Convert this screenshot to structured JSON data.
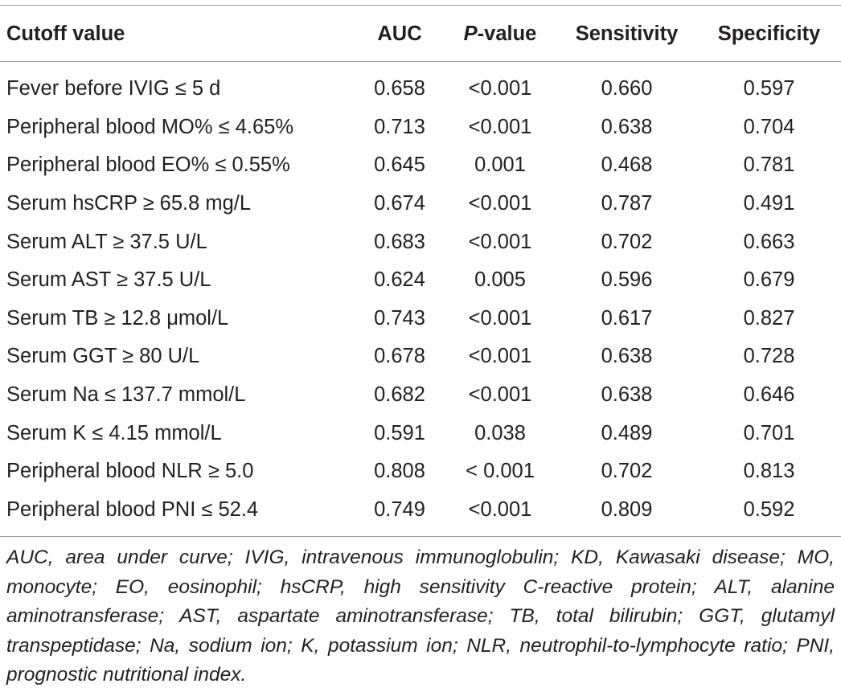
{
  "table": {
    "headers": {
      "cutoff": "Cutoff value",
      "auc": "AUC",
      "p_value_italic": "P",
      "p_value_rest": "-value",
      "sensitivity": "Sensitivity",
      "specificity": "Specificity"
    },
    "rows": [
      {
        "cutoff": "Fever before IVIG ≤ 5 d",
        "auc": "0.658",
        "p": "<0.001",
        "sensitivity": "0.660",
        "specificity": "0.597"
      },
      {
        "cutoff": "Peripheral blood MO% ≤ 4.65%",
        "auc": "0.713",
        "p": "<0.001",
        "sensitivity": "0.638",
        "specificity": "0.704"
      },
      {
        "cutoff": "Peripheral blood EO% ≤ 0.55%",
        "auc": "0.645",
        "p": "0.001",
        "sensitivity": "0.468",
        "specificity": "0.781"
      },
      {
        "cutoff": "Serum hsCRP ≥ 65.8 mg/L",
        "auc": "0.674",
        "p": "<0.001",
        "sensitivity": "0.787",
        "specificity": "0.491"
      },
      {
        "cutoff": "Serum ALT ≥ 37.5 U/L",
        "auc": "0.683",
        "p": "<0.001",
        "sensitivity": "0.702",
        "specificity": "0.663"
      },
      {
        "cutoff": "Serum AST ≥ 37.5 U/L",
        "auc": "0.624",
        "p": "0.005",
        "sensitivity": "0.596",
        "specificity": "0.679"
      },
      {
        "cutoff": "Serum TB ≥ 12.8 μmol/L",
        "auc": "0.743",
        "p": "<0.001",
        "sensitivity": "0.617",
        "specificity": "0.827"
      },
      {
        "cutoff": "Serum GGT ≥ 80 U/L",
        "auc": "0.678",
        "p": "<0.001",
        "sensitivity": "0.638",
        "specificity": "0.728"
      },
      {
        "cutoff": "Serum Na ≤ 137.7 mmol/L",
        "auc": "0.682",
        "p": "<0.001",
        "sensitivity": "0.638",
        "specificity": "0.646"
      },
      {
        "cutoff": "Serum K ≤ 4.15 mmol/L",
        "auc": "0.591",
        "p": "0.038",
        "sensitivity": "0.489",
        "specificity": "0.701"
      },
      {
        "cutoff": "Peripheral blood NLR ≥ 5.0",
        "auc": "0.808",
        "p": "< 0.001",
        "sensitivity": "0.702",
        "specificity": "0.813"
      },
      {
        "cutoff": "Peripheral blood PNI ≤ 52.4",
        "auc": "0.749",
        "p": "<0.001",
        "sensitivity": "0.809",
        "specificity": "0.592"
      }
    ]
  },
  "footnote": "AUC, area under curve; IVIG, intravenous immunoglobulin; KD, Kawasaki disease; MO, monocyte; EO, eosinophil; hsCRP, high sensitivity C-reactive protein; ALT, alanine aminotransferase; AST, aspartate aminotransferase; TB, total bilirubin; GGT, glutamyl transpeptidase; Na, sodium ion; K, potassium ion; NLR, neutrophil-to-lymphocyte ratio; PNI, prognostic nutritional index."
}
